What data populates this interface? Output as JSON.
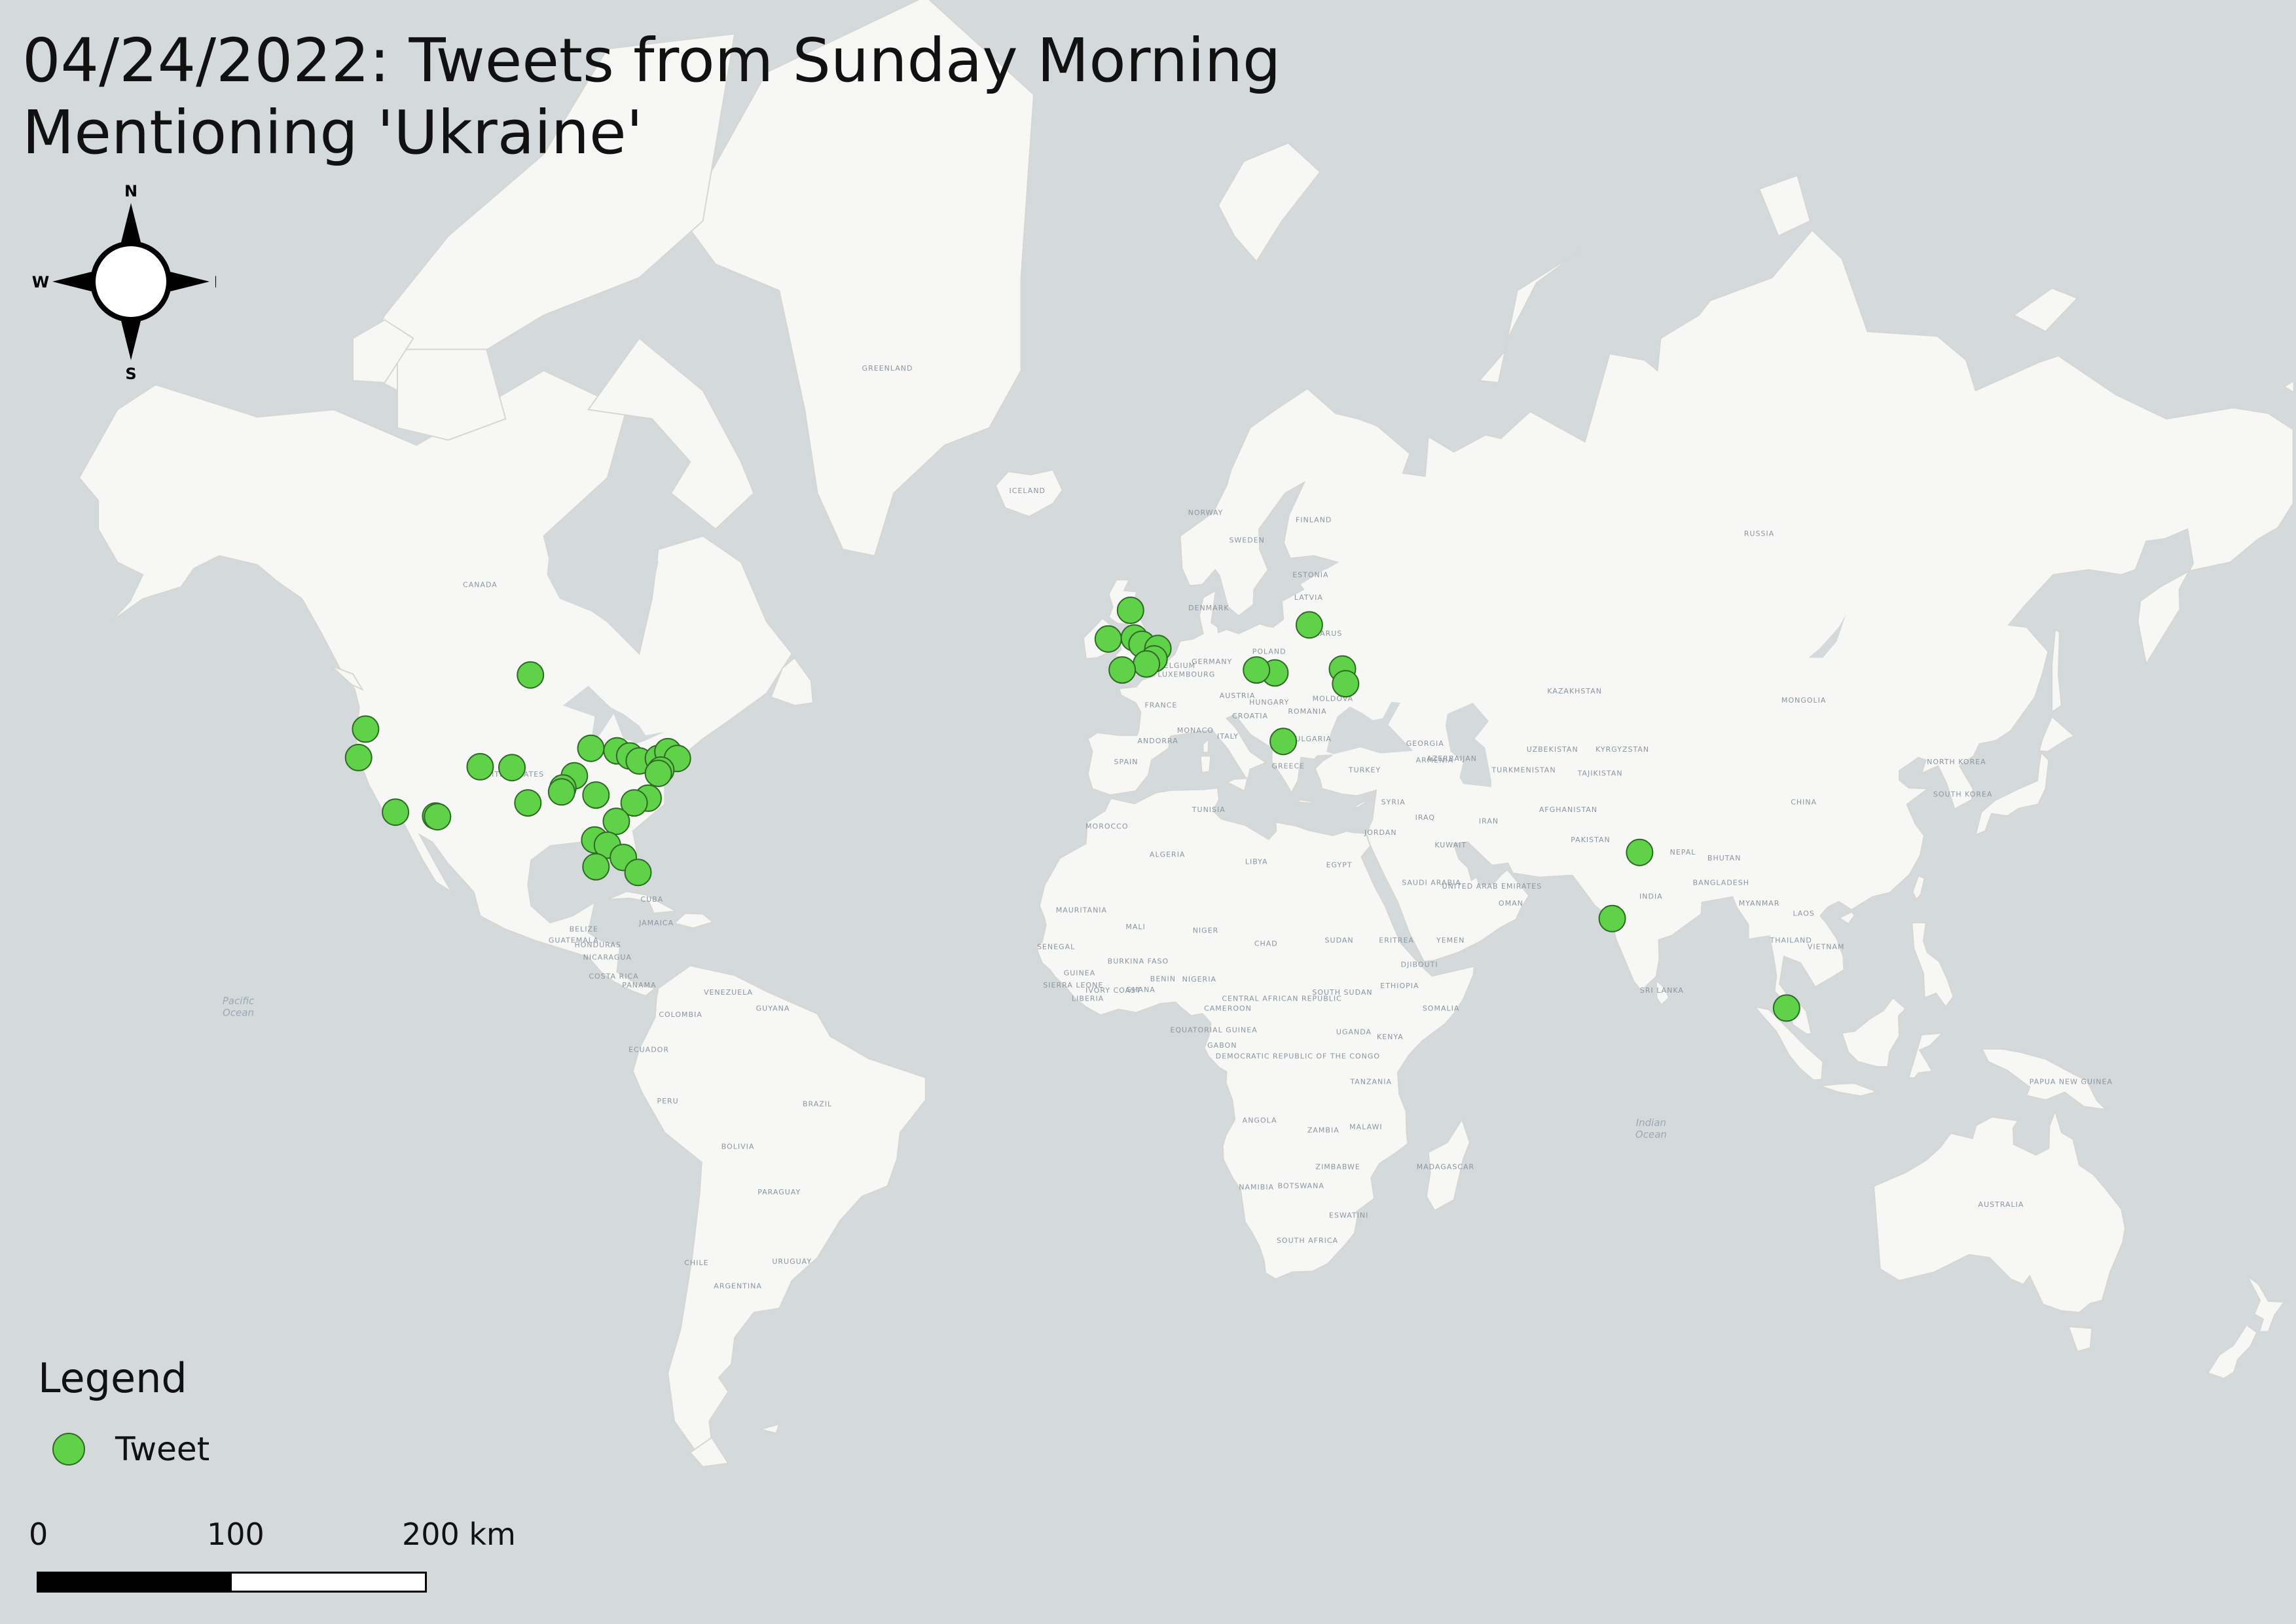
{
  "map": {
    "title": "04/24/2022: Tweets from Sunday Morning\nMentioning 'Ukraine'",
    "colors": {
      "ocean": "#d4d9dc",
      "land": "#f7f7f5",
      "border": "#d6d6d2",
      "tweet_fill": "#5fd24a",
      "tweet_stroke": "#2f6a24"
    },
    "legend": {
      "title": "Legend",
      "items": [
        {
          "label": "Tweet",
          "symbol": "green-circle"
        }
      ]
    },
    "scale_bar": {
      "labels": [
        "0",
        "100",
        "200 km"
      ]
    },
    "compass": {
      "north": "N",
      "south": "S",
      "east": "E",
      "west": "W"
    },
    "place_labels": [
      "GREENLAND",
      "ICELAND",
      "CANADA",
      "UNITED STATES",
      "RUSSIA",
      "FINLAND",
      "SWEDEN",
      "NORWAY",
      "ESTONIA",
      "LATVIA",
      "BELARUS",
      "POLAND",
      "GERMANY",
      "BELGIUM",
      "LUXEMBOURG",
      "FRANCE",
      "SPAIN",
      "AUSTRIA",
      "HUNGARY",
      "CROATIA",
      "ROMANIA",
      "MOLDOVA",
      "BULGARIA",
      "GREECE",
      "TURKEY",
      "ITALY",
      "KAZAKHSTAN",
      "MONGOLIA",
      "UZBEKISTAN",
      "KYRGYZSTAN",
      "TURKMENISTAN",
      "TAJIKISTAN",
      "AFGHANISTAN",
      "PAKISTAN",
      "IRAN",
      "IRAQ",
      "SYRIA",
      "JORDAN",
      "KUWAIT",
      "SAUDI ARABIA",
      "UNITED ARAB EMIRATES",
      "OMAN",
      "YEMEN",
      "INDIA",
      "NEPAL",
      "BHUTAN",
      "BANGLADESH",
      "CHINA",
      "NORTH KOREA",
      "SOUTH KOREA",
      "LAOS",
      "MYANMAR",
      "THAILAND",
      "VIETNAM",
      "SRI LANKA",
      "EGYPT",
      "LIBYA",
      "ALGERIA",
      "MOROCCO",
      "TUNISIA",
      "MAURITANIA",
      "MALI",
      "NIGER",
      "CHAD",
      "SUDAN",
      "ETHIOPIA",
      "SOMALIA",
      "KENYA",
      "UGANDA",
      "NIGERIA",
      "CAMEROON",
      "SOUTH SUDAN",
      "CENTRAL AFRICAN REPUBLIC",
      "DEMOCRATIC REPUBLIC OF THE CONGO",
      "TANZANIA",
      "ANGOLA",
      "ZAMBIA",
      "ZIMBABWE",
      "MALAWI",
      "MADAGASCAR",
      "NAMIBIA",
      "BOTSWANA",
      "ESWATINI",
      "SOUTH AFRICA",
      "SENEGAL",
      "GUINEA",
      "SIERRA LEONE",
      "LIBERIA",
      "IVORY COAST",
      "GHANA",
      "BURKINA FASO",
      "BENIN",
      "EQUATORIAL GUINEA",
      "GABON",
      "ERITREA",
      "DJIBOUTI",
      "CUBA",
      "JAMAICA",
      "BELIZE",
      "HONDURAS",
      "GUATEMALA",
      "NICARAGUA",
      "COSTA RICA",
      "PANAMA",
      "VENEZUELA",
      "GUYANA",
      "COLOMBIA",
      "ECUADOR",
      "PERU",
      "BRAZIL",
      "BOLIVIA",
      "PARAGUAY",
      "CHILE",
      "URUGUAY",
      "ARGENTINA",
      "AUSTRALIA",
      "PAPUA NEW GUINEA",
      "DENMARK",
      "ANDORRA",
      "MONACO",
      "GEORGIA",
      "ARMENIA",
      "AZERBAIJAN"
    ],
    "ocean_labels": [
      "Pacific Ocean",
      "Indian Ocean"
    ],
    "tweets": [
      {
        "lat": 44.1,
        "lon": -123.0
      },
      {
        "lat": 40.8,
        "lon": -124.1
      },
      {
        "lat": 34.0,
        "lon": -118.3
      },
      {
        "lat": 33.5,
        "lon": -112.0
      },
      {
        "lat": 33.4,
        "lon": -111.7
      },
      {
        "lat": 49.9,
        "lon": -97.1
      },
      {
        "lat": 39.7,
        "lon": -105.0
      },
      {
        "lat": 39.6,
        "lon": -100.0
      },
      {
        "lat": 41.9,
        "lon": -87.6
      },
      {
        "lat": 38.6,
        "lon": -90.2
      },
      {
        "lat": 36.2,
        "lon": -86.8
      },
      {
        "lat": 35.2,
        "lon": -97.5
      },
      {
        "lat": 37.1,
        "lon": -92.0
      },
      {
        "lat": 36.6,
        "lon": -92.2
      },
      {
        "lat": 41.6,
        "lon": -83.5
      },
      {
        "lat": 41.0,
        "lon": -81.5
      },
      {
        "lat": 40.4,
        "lon": -80.0
      },
      {
        "lat": 40.7,
        "lon": -77.0
      },
      {
        "lat": 41.5,
        "lon": -75.5
      },
      {
        "lat": 40.7,
        "lon": -74.0
      },
      {
        "lat": 39.3,
        "lon": -76.6
      },
      {
        "lat": 38.9,
        "lon": -77.0
      },
      {
        "lat": 35.8,
        "lon": -78.6
      },
      {
        "lat": 35.2,
        "lon": -80.8
      },
      {
        "lat": 32.8,
        "lon": -83.6
      },
      {
        "lat": 30.3,
        "lon": -87.0
      },
      {
        "lat": 29.6,
        "lon": -85.0
      },
      {
        "lat": 27.9,
        "lon": -82.5
      },
      {
        "lat": 25.8,
        "lon": -80.2
      },
      {
        "lat": 26.6,
        "lon": -86.8
      },
      {
        "lat": 56.0,
        "lon": -2.8
      },
      {
        "lat": 53.4,
        "lon": -6.3
      },
      {
        "lat": 53.5,
        "lon": -2.2
      },
      {
        "lat": 52.9,
        "lon": -1.0
      },
      {
        "lat": 52.5,
        "lon": 1.5
      },
      {
        "lat": 51.5,
        "lon": 0.9
      },
      {
        "lat": 51.0,
        "lon": -0.3
      },
      {
        "lat": 50.4,
        "lon": -4.1
      },
      {
        "lat": 54.7,
        "lon": 25.3
      },
      {
        "lat": 50.1,
        "lon": 19.9
      },
      {
        "lat": 50.4,
        "lon": 17.0
      },
      {
        "lat": 50.5,
        "lon": 30.5
      },
      {
        "lat": 49.0,
        "lon": 31.0
      },
      {
        "lat": 42.7,
        "lon": 21.2
      },
      {
        "lat": 28.6,
        "lon": 77.2
      },
      {
        "lat": 19.1,
        "lon": 72.9
      },
      {
        "lat": 5.4,
        "lon": 100.3
      }
    ]
  }
}
